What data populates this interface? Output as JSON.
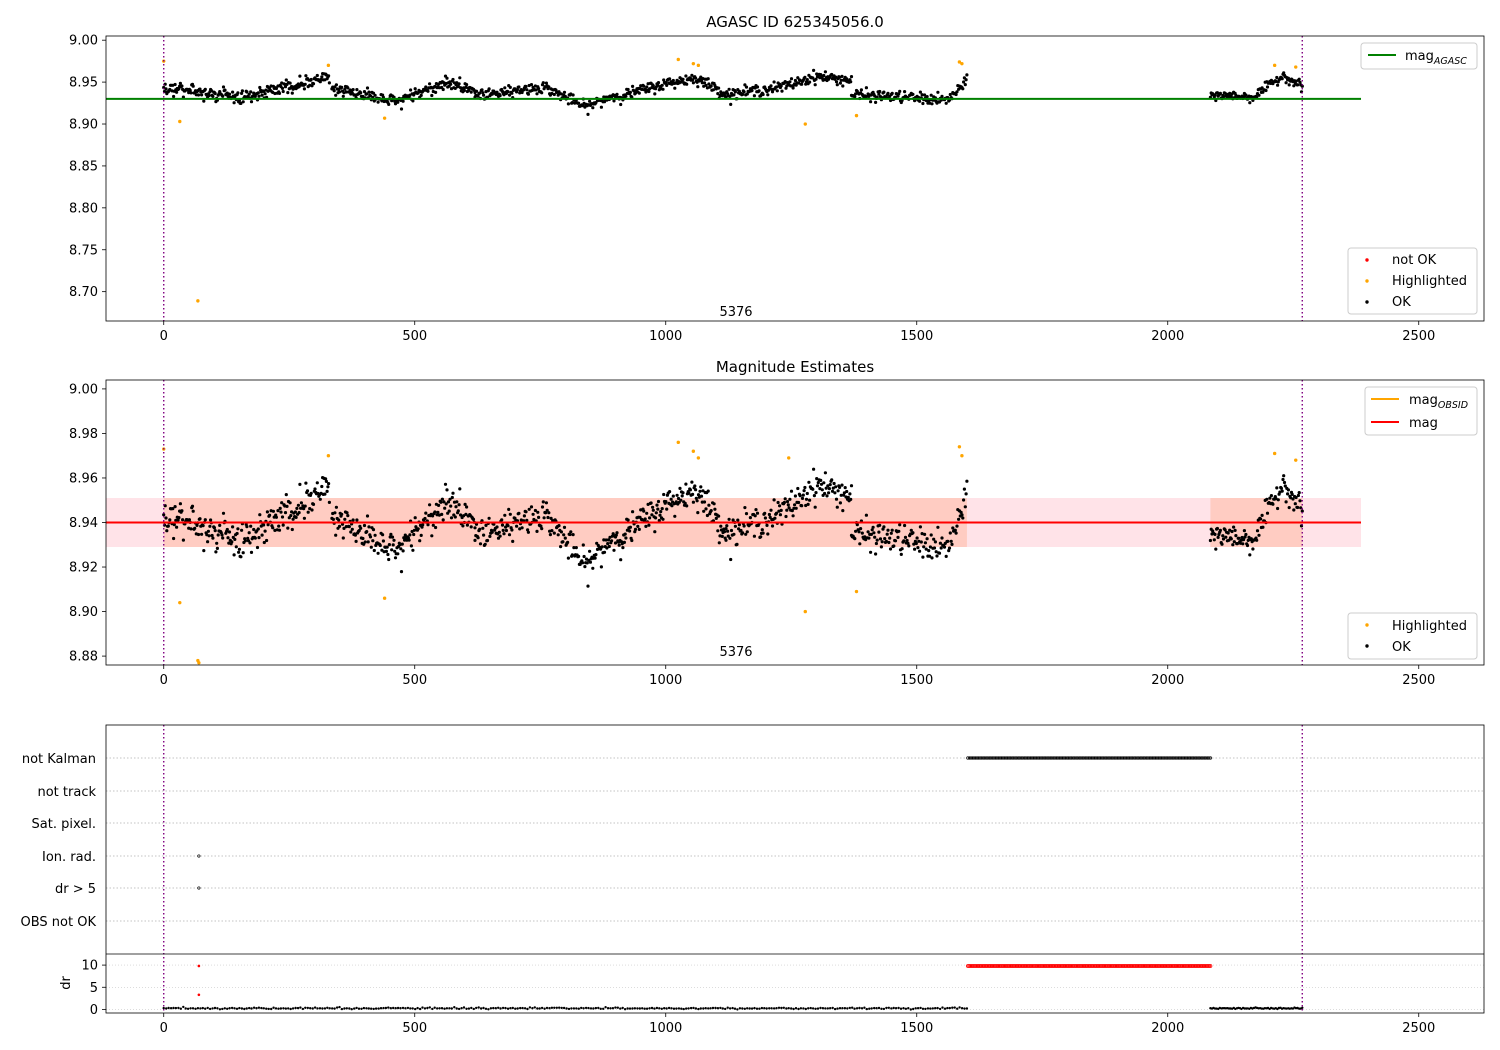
{
  "chart_data": [
    {
      "type": "scatter",
      "title": "AGASC ID 625345056.0",
      "xlim": [
        -115,
        2630
      ],
      "ylim": [
        8.665,
        9.005
      ],
      "xticks": [
        0,
        500,
        1000,
        1500,
        2000,
        2500
      ],
      "yticks": [
        8.7,
        8.75,
        8.8,
        8.85,
        8.9,
        8.95,
        9.0
      ],
      "ytick_labels": [
        "8.70",
        "8.75",
        "8.80",
        "8.85",
        "8.90",
        "8.95",
        "9.00"
      ],
      "annotation": {
        "text": "5376",
        "x": 1140,
        "y": 8.671
      },
      "vlines": [
        0,
        2268
      ],
      "hline": {
        "y": 8.93,
        "x": [
          -115,
          2385
        ],
        "color": "#008000"
      },
      "legend_lines": [
        {
          "label": "mag",
          "sub": "AGASC",
          "color": "#008000"
        }
      ],
      "legend_points": [
        {
          "label": "not OK",
          "color": "#ff0000"
        },
        {
          "label": "Highlighted",
          "color": "#ffa500"
        },
        {
          "label": "OK",
          "color": "#000000"
        }
      ],
      "highlighted": [
        {
          "x": 0,
          "y": 8.975
        },
        {
          "x": 32,
          "y": 8.903
        },
        {
          "x": 68,
          "y": 8.689
        },
        {
          "x": 328,
          "y": 8.97
        },
        {
          "x": 440,
          "y": 8.907
        },
        {
          "x": 1025,
          "y": 8.977
        },
        {
          "x": 1055,
          "y": 8.972
        },
        {
          "x": 1065,
          "y": 8.97
        },
        {
          "x": 1278,
          "y": 8.9
        },
        {
          "x": 1380,
          "y": 8.91
        },
        {
          "x": 1585,
          "y": 8.974
        },
        {
          "x": 1590,
          "y": 8.972
        },
        {
          "x": 2213,
          "y": 8.97
        },
        {
          "x": 2255,
          "y": 8.968
        }
      ],
      "ok_segments": [
        {
          "x": [
            0,
            150,
            250,
            330
          ],
          "y": [
            8.944,
            8.932,
            8.944,
            8.958
          ],
          "noise": 0.007,
          "n": 220
        },
        {
          "x": [
            335,
            470,
            560,
            620
          ],
          "y": [
            8.942,
            8.928,
            8.95,
            8.94
          ],
          "noise": 0.006,
          "n": 190
        },
        {
          "x": [
            620,
            760,
            840,
            900
          ],
          "y": [
            8.935,
            8.944,
            8.92,
            8.935
          ],
          "noise": 0.006,
          "n": 180
        },
        {
          "x": [
            900,
            1000,
            1060,
            1120
          ],
          "y": [
            8.932,
            8.948,
            8.955,
            8.936
          ],
          "noise": 0.006,
          "n": 150
        },
        {
          "x": [
            1120,
            1230,
            1300,
            1370
          ],
          "y": [
            8.935,
            8.944,
            8.957,
            8.952
          ],
          "noise": 0.006,
          "n": 160
        },
        {
          "x": [
            1370,
            1480,
            1560,
            1600
          ],
          "y": [
            8.935,
            8.932,
            8.928,
            8.95
          ],
          "noise": 0.006,
          "n": 140
        },
        {
          "x": [
            2085,
            2170,
            2230,
            2268
          ],
          "y": [
            8.935,
            8.932,
            8.958,
            8.945
          ],
          "noise": 0.005,
          "n": 120
        }
      ]
    },
    {
      "type": "scatter",
      "title": "Magnitude Estimates",
      "xlim": [
        -115,
        2630
      ],
      "ylim": [
        8.876,
        9.004
      ],
      "xticks": [
        0,
        500,
        1000,
        1500,
        2000,
        2500
      ],
      "yticks": [
        8.88,
        8.9,
        8.92,
        8.94,
        8.96,
        8.98,
        9.0
      ],
      "ytick_labels": [
        "8.88",
        "8.90",
        "8.92",
        "8.94",
        "8.96",
        "8.98",
        "9.00"
      ],
      "annotation": {
        "text": "5376",
        "x": 1140,
        "y": 8.88
      },
      "vlines": [
        0,
        2268
      ],
      "hline": {
        "y": 8.94,
        "x": [
          -115,
          2385
        ],
        "color": "#ff0000"
      },
      "band": {
        "y": [
          8.929,
          8.951
        ],
        "x": [
          -115,
          2385
        ],
        "color": "#ffc0cb"
      },
      "obsid_band": {
        "y": [
          8.929,
          8.951
        ],
        "x": [
          0,
          1600
        ],
        "color": "#ffa07a"
      },
      "legend_lines": [
        {
          "label": "mag",
          "sub": "OBSID",
          "color": "#ffa500"
        },
        {
          "label": "mag",
          "sub": "",
          "color": "#ff0000"
        }
      ],
      "legend_points": [
        {
          "label": "Highlighted",
          "color": "#ffa500"
        },
        {
          "label": "OK",
          "color": "#000000"
        }
      ],
      "highlighted": [
        {
          "x": 0,
          "y": 8.973
        },
        {
          "x": 32,
          "y": 8.904
        },
        {
          "x": 68,
          "y": 8.878
        },
        {
          "x": 70,
          "y": 8.877
        },
        {
          "x": 328,
          "y": 8.97
        },
        {
          "x": 440,
          "y": 8.906
        },
        {
          "x": 1025,
          "y": 8.976
        },
        {
          "x": 1055,
          "y": 8.972
        },
        {
          "x": 1065,
          "y": 8.969
        },
        {
          "x": 1245,
          "y": 8.969
        },
        {
          "x": 1278,
          "y": 8.9
        },
        {
          "x": 1380,
          "y": 8.909
        },
        {
          "x": 1585,
          "y": 8.974
        },
        {
          "x": 1590,
          "y": 8.97
        },
        {
          "x": 2213,
          "y": 8.971
        },
        {
          "x": 2255,
          "y": 8.968
        }
      ],
      "ok_segments": [
        {
          "x": [
            0,
            150,
            250,
            330
          ],
          "y": [
            8.944,
            8.932,
            8.944,
            8.958
          ],
          "noise": 0.007,
          "n": 220
        },
        {
          "x": [
            335,
            470,
            560,
            620
          ],
          "y": [
            8.942,
            8.928,
            8.95,
            8.94
          ],
          "noise": 0.006,
          "n": 190
        },
        {
          "x": [
            620,
            760,
            840,
            900
          ],
          "y": [
            8.935,
            8.944,
            8.92,
            8.935
          ],
          "noise": 0.006,
          "n": 180
        },
        {
          "x": [
            900,
            1000,
            1060,
            1120
          ],
          "y": [
            8.932,
            8.948,
            8.955,
            8.936
          ],
          "noise": 0.006,
          "n": 150
        },
        {
          "x": [
            1120,
            1230,
            1300,
            1370
          ],
          "y": [
            8.935,
            8.944,
            8.957,
            8.952
          ],
          "noise": 0.006,
          "n": 160
        },
        {
          "x": [
            1370,
            1480,
            1560,
            1600
          ],
          "y": [
            8.935,
            8.932,
            8.928,
            8.95
          ],
          "noise": 0.006,
          "n": 140
        },
        {
          "x": [
            2085,
            2170,
            2230,
            2268
          ],
          "y": [
            8.935,
            8.932,
            8.958,
            8.945
          ],
          "noise": 0.005,
          "n": 120
        }
      ]
    },
    {
      "type": "scatter",
      "title": "",
      "xlim": [
        -115,
        2630
      ],
      "xticks": [
        0,
        500,
        1000,
        1500,
        2000,
        2500
      ],
      "vlines": [
        0,
        2268
      ],
      "flags": [
        "not Kalman",
        "not track",
        "Sat. pixel.",
        "Ion. rad.",
        "dr > 5",
        "OBS not OK"
      ],
      "flag_points": [
        {
          "flag": "not Kalman",
          "x_range": [
            1602,
            2085
          ],
          "n": 160,
          "color": "#000000"
        },
        {
          "flag": "Ion. rad.",
          "x": [
            70
          ],
          "color": "#000000"
        },
        {
          "flag": "dr > 5",
          "x": [
            70
          ],
          "color": "#000000"
        }
      ],
      "dr": {
        "ylabel": "dr",
        "ylim": [
          -0.8,
          12.5
        ],
        "yticks": [
          0,
          5,
          10
        ],
        "ytick_labels": [
          "0",
          "5",
          "10"
        ],
        "red_points": [
          {
            "x": 70,
            "y": 9.8
          },
          {
            "x": 70,
            "y": 3.3
          }
        ],
        "red_range": {
          "x_range": [
            1602,
            2085
          ],
          "y": 9.8,
          "n": 200,
          "color": "#ff0000"
        },
        "black_ranges": [
          {
            "x_range": [
              0,
              1600
            ],
            "y": 0.25,
            "noise": 0.15,
            "n": 330
          },
          {
            "x_range": [
              2085,
              2268
            ],
            "y": 0.25,
            "noise": 0.12,
            "n": 60
          }
        ]
      }
    }
  ]
}
